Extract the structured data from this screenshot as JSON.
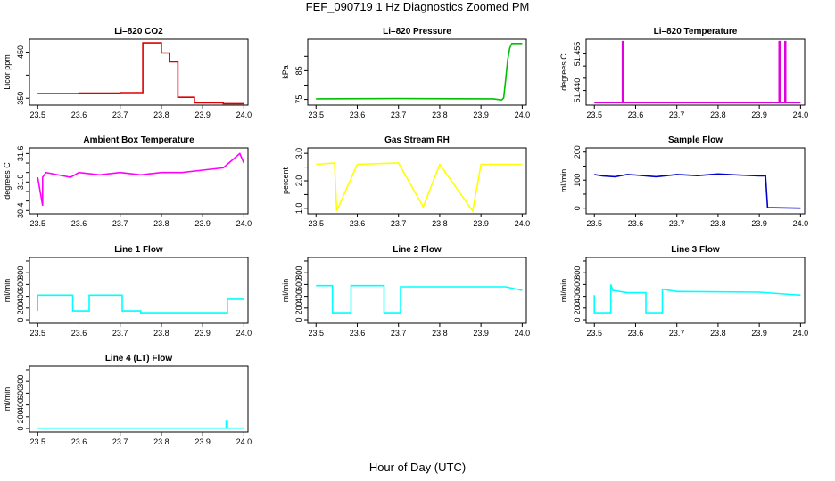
{
  "page": {
    "title": "FEF_090719  1 Hz Diagnostics Zoomed PM",
    "x_axis_title": "Hour of Day (UTC)"
  },
  "x_axis": {
    "ticks": [
      23.5,
      23.6,
      23.7,
      23.8,
      23.9,
      24.0
    ],
    "tick_labels": [
      "23.5",
      "23.6",
      "23.7",
      "23.8",
      "23.9",
      "24.0"
    ],
    "xlim": [
      23.48,
      24.01
    ]
  },
  "chart_data": [
    {
      "type": "line",
      "title": "Li–820 CO2",
      "ylabel": "Licor ppm",
      "color": "#dd0000",
      "ylim": [
        335,
        478
      ],
      "yticks": [
        350,
        400,
        450
      ],
      "ytick_labels": [
        "350",
        "",
        "450"
      ],
      "series": [
        {
          "x": [
            23.5,
            23.6,
            23.6,
            23.7,
            23.7,
            23.755,
            23.755,
            23.8,
            23.8,
            23.82,
            23.82,
            23.84,
            23.84,
            23.88,
            23.88,
            23.95,
            23.95,
            24.0
          ],
          "y": [
            360,
            360,
            361,
            361,
            362,
            362,
            470,
            470,
            448,
            448,
            429,
            429,
            352,
            352,
            340,
            340,
            338,
            338
          ]
        }
      ]
    },
    {
      "type": "line",
      "title": "Li–820 Pressure",
      "ylabel": "kPa",
      "color": "#00c000",
      "ylim": [
        73,
        96
      ],
      "yticks": [
        75,
        80,
        85,
        90
      ],
      "ytick_labels": [
        "75",
        "",
        "85",
        ""
      ],
      "series": [
        {
          "x": [
            23.5,
            23.7,
            23.93,
            23.95,
            23.955,
            23.96,
            23.965,
            23.97,
            23.975,
            24.0
          ],
          "y": [
            75.2,
            75.3,
            75.2,
            74.8,
            75.5,
            82,
            89,
            93,
            94.5,
            94.5
          ]
        }
      ]
    },
    {
      "type": "line",
      "title": "Li–820 Temperature",
      "ylabel": "degrees C",
      "color": "#e000e0",
      "ylim": [
        51.434,
        51.461
      ],
      "yticks": [
        51.44,
        51.445,
        51.45,
        51.455
      ],
      "ytick_labels": [
        "51.440",
        "",
        "",
        "51.455"
      ],
      "series": [
        {
          "x": [
            23.5,
            23.568,
            23.568,
            23.57,
            23.57,
            23.948,
            23.948,
            23.95,
            23.95,
            23.962,
            23.962,
            23.964,
            23.964,
            24.0
          ],
          "y": [
            51.435,
            51.435,
            51.46,
            51.46,
            51.435,
            51.435,
            51.46,
            51.46,
            51.435,
            51.435,
            51.46,
            51.46,
            51.435,
            51.435
          ]
        }
      ]
    },
    {
      "type": "line",
      "title": "Ambient Box Temperature",
      "ylabel": "degrees C",
      "color": "#ff00ff",
      "ylim": [
        30.33,
        31.72
      ],
      "yticks": [
        30.4,
        30.6,
        30.8,
        31.0,
        31.2,
        31.4,
        31.6
      ],
      "ytick_labels": [
        "30.4",
        "",
        "",
        "31.0",
        "",
        "",
        "31.6"
      ],
      "series": [
        {
          "x": [
            23.5,
            23.512,
            23.512,
            23.52,
            23.58,
            23.6,
            23.65,
            23.7,
            23.75,
            23.8,
            23.85,
            23.9,
            23.95,
            23.99,
            24.0
          ],
          "y": [
            31.1,
            30.5,
            31.1,
            31.2,
            31.1,
            31.2,
            31.15,
            31.2,
            31.15,
            31.2,
            31.2,
            31.25,
            31.3,
            31.6,
            31.4
          ]
        }
      ]
    },
    {
      "type": "line",
      "title": "Gas Stream RH",
      "ylabel": "percent",
      "color": "#ffff00",
      "ylim": [
        0.8,
        3.2
      ],
      "yticks": [
        1.0,
        1.5,
        2.0,
        2.5,
        3.0
      ],
      "ytick_labels": [
        "1.0",
        "",
        "2.0",
        "",
        "3.0"
      ],
      "series": [
        {
          "x": [
            23.5,
            23.545,
            23.55,
            23.6,
            23.7,
            23.76,
            23.8,
            23.88,
            23.9,
            24.0
          ],
          "y": [
            2.6,
            2.65,
            0.9,
            2.6,
            2.65,
            1.05,
            2.6,
            0.9,
            2.6,
            2.6
          ]
        }
      ]
    },
    {
      "type": "line",
      "title": "Sample Flow",
      "ylabel": "ml/min",
      "color": "#0000cc",
      "ylim": [
        -20,
        215
      ],
      "yticks": [
        0,
        50,
        100,
        150,
        200
      ],
      "ytick_labels": [
        "0",
        "",
        "100",
        "",
        "200"
      ],
      "series": [
        {
          "x": [
            23.5,
            23.52,
            23.55,
            23.58,
            23.6,
            23.65,
            23.7,
            23.75,
            23.8,
            23.85,
            23.9,
            23.915,
            23.92,
            24.0
          ],
          "y": [
            120,
            115,
            112,
            120,
            118,
            112,
            120,
            116,
            122,
            118,
            115,
            115,
            2,
            0
          ]
        }
      ]
    },
    {
      "type": "line",
      "title": "Line 1 Flow",
      "ylabel": "ml/min",
      "color": "#00ffff",
      "ylim": [
        -60,
        1060
      ],
      "yticks": [
        0,
        200,
        400,
        600,
        800,
        1000
      ],
      "ytick_labels": [
        "0",
        "200",
        "400",
        "600",
        "800",
        ""
      ],
      "series": [
        {
          "x": [
            23.5,
            23.5,
            23.585,
            23.585,
            23.625,
            23.625,
            23.705,
            23.705,
            23.75,
            23.75,
            23.96,
            23.96,
            24.0
          ],
          "y": [
            150,
            420,
            420,
            150,
            150,
            420,
            420,
            150,
            150,
            120,
            120,
            350,
            350
          ]
        }
      ]
    },
    {
      "type": "line",
      "title": "Line 2 Flow",
      "ylabel": "ml/min",
      "color": "#00ffff",
      "ylim": [
        -60,
        1060
      ],
      "yticks": [
        0,
        200,
        400,
        600,
        800,
        1000
      ],
      "ytick_labels": [
        "0",
        "200",
        "400",
        "600",
        "800",
        ""
      ],
      "series": [
        {
          "x": [
            23.5,
            23.54,
            23.54,
            23.585,
            23.585,
            23.665,
            23.665,
            23.705,
            23.705,
            23.96,
            24.0
          ],
          "y": [
            580,
            580,
            120,
            120,
            580,
            580,
            120,
            120,
            560,
            560,
            500
          ]
        }
      ]
    },
    {
      "type": "line",
      "title": "Line 3 Flow",
      "ylabel": "ml/min",
      "color": "#00ffff",
      "ylim": [
        -60,
        1060
      ],
      "yticks": [
        0,
        200,
        400,
        600,
        800,
        1000
      ],
      "ytick_labels": [
        "0",
        "200",
        "400",
        "600",
        "800",
        ""
      ],
      "series": [
        {
          "x": [
            23.5,
            23.5,
            23.5,
            23.54,
            23.54,
            23.545,
            23.58,
            23.625,
            23.625,
            23.665,
            23.665,
            23.7,
            23.9,
            23.96,
            24.0
          ],
          "y": [
            420,
            120,
            120,
            120,
            600,
            500,
            460,
            460,
            120,
            120,
            520,
            480,
            470,
            440,
            420
          ]
        }
      ]
    },
    {
      "type": "line",
      "title": "Line 4 (LT) Flow",
      "ylabel": "ml/min",
      "color": "#00ffff",
      "ylim": [
        -60,
        1060
      ],
      "yticks": [
        0,
        200,
        400,
        600,
        800,
        1000
      ],
      "ytick_labels": [
        "0",
        "200",
        "400",
        "600",
        "800",
        ""
      ],
      "series": [
        {
          "x": [
            23.5,
            23.957,
            23.957,
            23.96,
            23.96,
            24.0
          ],
          "y": [
            5,
            5,
            120,
            120,
            5,
            5
          ]
        }
      ]
    }
  ]
}
